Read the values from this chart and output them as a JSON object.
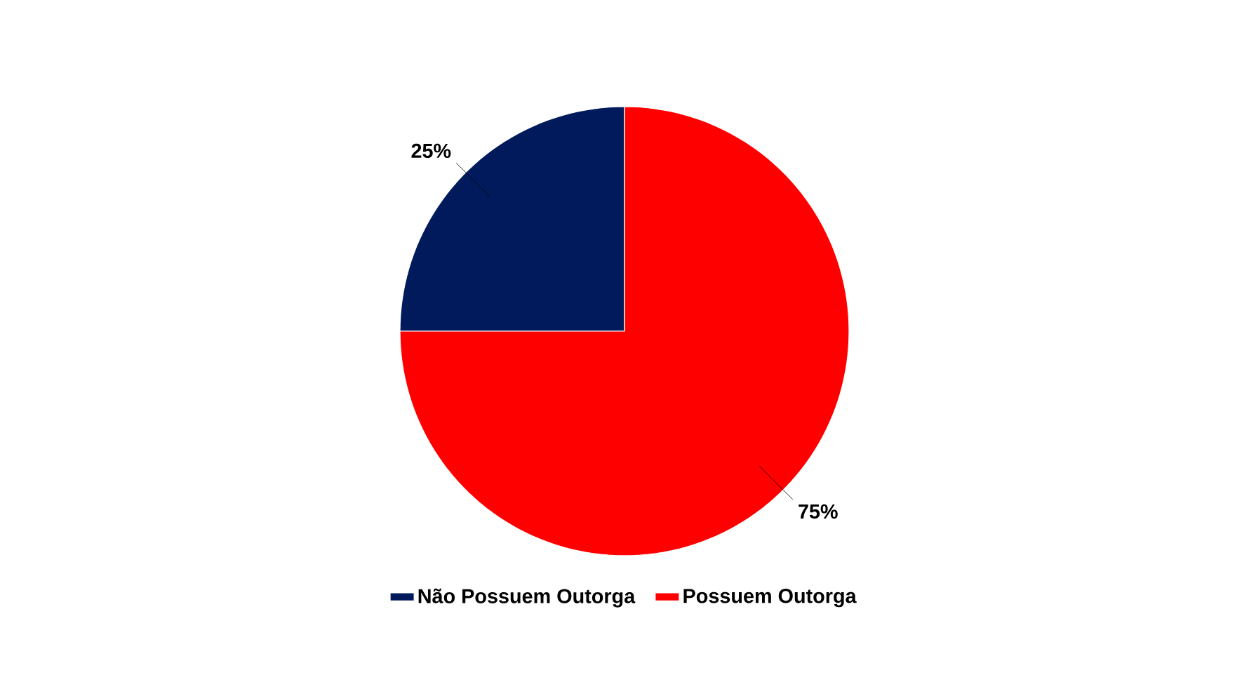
{
  "chart_data": {
    "type": "pie",
    "categories": [
      "Não Possuem Outorga",
      "Possuem Outorga"
    ],
    "values": [
      25,
      75
    ],
    "colors": [
      "#001a5c",
      "#ff0000"
    ],
    "value_labels": [
      "25%",
      "75%"
    ],
    "legend": "bottom"
  }
}
